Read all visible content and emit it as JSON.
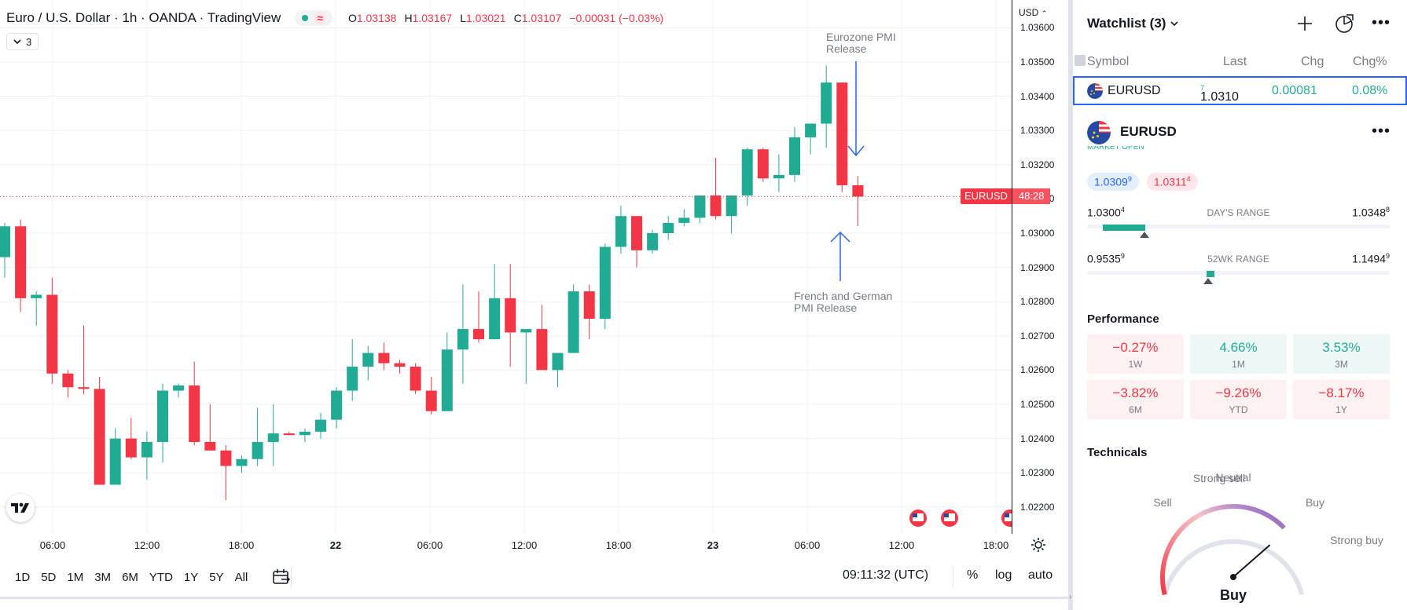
{
  "chart_header": {
    "title": "Euro / U.S. Dollar · 1h · OANDA · TradingView",
    "ohlc": [
      {
        "k": "O",
        "v": "1.03138"
      },
      {
        "k": "H",
        "v": "1.03167"
      },
      {
        "k": "L",
        "v": "1.03021"
      },
      {
        "k": "C",
        "v": "1.03107"
      },
      {
        "k": "",
        "v": "−0.00031 (−0.03%)"
      }
    ],
    "status_icon": "market-open-dot",
    "wave_icon": "≈",
    "collapse_count": "3"
  },
  "price_axis": {
    "currency": "USD",
    "ticks": [
      "1.03600",
      "1.03500",
      "1.03400",
      "1.03300",
      "1.03200",
      "1.03100",
      "1.03000",
      "1.02900",
      "1.02800",
      "1.02700",
      "1.02600",
      "1.02500",
      "1.02400",
      "1.02300",
      "1.02200"
    ],
    "symbol_tag": "EURUSD",
    "countdown": "48:28"
  },
  "time_axis": [
    {
      "label": "06:00",
      "bold": false
    },
    {
      "label": "12:00",
      "bold": false
    },
    {
      "label": "18:00",
      "bold": false
    },
    {
      "label": "22",
      "bold": true
    },
    {
      "label": "06:00",
      "bold": false
    },
    {
      "label": "12:00",
      "bold": false
    },
    {
      "label": "18:00",
      "bold": false
    },
    {
      "label": "23",
      "bold": true
    },
    {
      "label": "06:00",
      "bold": false
    },
    {
      "label": "12:00",
      "bold": false
    },
    {
      "label": "18:00",
      "bold": false
    }
  ],
  "annotations": {
    "top": [
      "Eurozone PMI",
      "Release"
    ],
    "bottom": [
      "French and German",
      "PMI Release"
    ]
  },
  "colors": {
    "up": "#22ab94",
    "down": "#f23645",
    "annotation": "#2962ff",
    "accent": "#2962ff"
  },
  "chart_data": {
    "type": "candlestick",
    "ylim": [
      1.0215,
      1.0362
    ],
    "candles": [
      {
        "o": 1.0293,
        "h": 1.0303,
        "l": 1.0287,
        "c": 1.0302
      },
      {
        "o": 1.0302,
        "h": 1.0304,
        "l": 1.0277,
        "c": 1.0281
      },
      {
        "o": 1.0281,
        "h": 1.0283,
        "l": 1.0273,
        "c": 1.0282
      },
      {
        "o": 1.0282,
        "h": 1.0287,
        "l": 1.0256,
        "c": 1.0259
      },
      {
        "o": 1.0259,
        "h": 1.026,
        "l": 1.0252,
        "c": 1.0255
      },
      {
        "o": 1.0255,
        "h": 1.0273,
        "l": 1.0253,
        "c": 1.02545
      },
      {
        "o": 1.02545,
        "h": 1.0258,
        "l": 1.02265,
        "c": 1.02265
      },
      {
        "o": 1.02265,
        "h": 1.0243,
        "l": 1.02265,
        "c": 1.024
      },
      {
        "o": 1.024,
        "h": 1.0246,
        "l": 1.0234,
        "c": 1.02345
      },
      {
        "o": 1.02345,
        "h": 1.0242,
        "l": 1.0228,
        "c": 1.0239
      },
      {
        "o": 1.0239,
        "h": 1.0256,
        "l": 1.0233,
        "c": 1.0254
      },
      {
        "o": 1.0254,
        "h": 1.0256,
        "l": 1.0252,
        "c": 1.02555
      },
      {
        "o": 1.02555,
        "h": 1.02625,
        "l": 1.0238,
        "c": 1.0239
      },
      {
        "o": 1.0239,
        "h": 1.025,
        "l": 1.0237,
        "c": 1.02365
      },
      {
        "o": 1.02365,
        "h": 1.0238,
        "l": 1.0222,
        "c": 1.0232
      },
      {
        "o": 1.0232,
        "h": 1.0235,
        "l": 1.023,
        "c": 1.0234
      },
      {
        "o": 1.0234,
        "h": 1.0249,
        "l": 1.0232,
        "c": 1.0239
      },
      {
        "o": 1.0239,
        "h": 1.025,
        "l": 1.0232,
        "c": 1.02415
      },
      {
        "o": 1.02415,
        "h": 1.0242,
        "l": 1.0241,
        "c": 1.0241
      },
      {
        "o": 1.0241,
        "h": 1.0243,
        "l": 1.0239,
        "c": 1.0242
      },
      {
        "o": 1.0242,
        "h": 1.02475,
        "l": 1.024,
        "c": 1.02455
      },
      {
        "o": 1.02455,
        "h": 1.0255,
        "l": 1.0243,
        "c": 1.0254
      },
      {
        "o": 1.0254,
        "h": 1.0269,
        "l": 1.0251,
        "c": 1.0261
      },
      {
        "o": 1.0261,
        "h": 1.0267,
        "l": 1.0257,
        "c": 1.0265
      },
      {
        "o": 1.0265,
        "h": 1.0268,
        "l": 1.026,
        "c": 1.0262
      },
      {
        "o": 1.0262,
        "h": 1.0263,
        "l": 1.0259,
        "c": 1.0261
      },
      {
        "o": 1.0261,
        "h": 1.0262,
        "l": 1.0253,
        "c": 1.0254
      },
      {
        "o": 1.0254,
        "h": 1.0258,
        "l": 1.0247,
        "c": 1.0248
      },
      {
        "o": 1.0248,
        "h": 1.0271,
        "l": 1.0248,
        "c": 1.0266
      },
      {
        "o": 1.0266,
        "h": 1.0285,
        "l": 1.0256,
        "c": 1.0272
      },
      {
        "o": 1.0272,
        "h": 1.0283,
        "l": 1.0268,
        "c": 1.0269
      },
      {
        "o": 1.0269,
        "h": 1.0291,
        "l": 1.0269,
        "c": 1.0281
      },
      {
        "o": 1.0281,
        "h": 1.0291,
        "l": 1.0261,
        "c": 1.0271
      },
      {
        "o": 1.0271,
        "h": 1.0272,
        "l": 1.0256,
        "c": 1.0272
      },
      {
        "o": 1.0272,
        "h": 1.0279,
        "l": 1.026,
        "c": 1.026
      },
      {
        "o": 1.026,
        "h": 1.0265,
        "l": 1.0255,
        "c": 1.0265
      },
      {
        "o": 1.0265,
        "h": 1.0285,
        "l": 1.0265,
        "c": 1.0283
      },
      {
        "o": 1.0283,
        "h": 1.0285,
        "l": 1.0269,
        "c": 1.0275
      },
      {
        "o": 1.0275,
        "h": 1.0297,
        "l": 1.0272,
        "c": 1.0296
      },
      {
        "o": 1.0296,
        "h": 1.0308,
        "l": 1.0294,
        "c": 1.0305
      },
      {
        "o": 1.0305,
        "h": 1.0305,
        "l": 1.029,
        "c": 1.0295
      },
      {
        "o": 1.0295,
        "h": 1.0301,
        "l": 1.0294,
        "c": 1.03
      },
      {
        "o": 1.03,
        "h": 1.0305,
        "l": 1.0298,
        "c": 1.0303
      },
      {
        "o": 1.0303,
        "h": 1.0307,
        "l": 1.0302,
        "c": 1.03045
      },
      {
        "o": 1.03045,
        "h": 1.0311,
        "l": 1.0303,
        "c": 1.0311
      },
      {
        "o": 1.0311,
        "h": 1.0322,
        "l": 1.0304,
        "c": 1.0305
      },
      {
        "o": 1.0305,
        "h": 1.0311,
        "l": 1.03,
        "c": 1.0311
      },
      {
        "o": 1.0311,
        "h": 1.0325,
        "l": 1.0308,
        "c": 1.03245
      },
      {
        "o": 1.03245,
        "h": 1.0325,
        "l": 1.0315,
        "c": 1.0316
      },
      {
        "o": 1.0316,
        "h": 1.0323,
        "l": 1.0312,
        "c": 1.0317
      },
      {
        "o": 1.0317,
        "h": 1.0331,
        "l": 1.0315,
        "c": 1.0328
      },
      {
        "o": 1.0328,
        "h": 1.0332,
        "l": 1.0323,
        "c": 1.0332
      },
      {
        "o": 1.0332,
        "h": 1.0349,
        "l": 1.0325,
        "c": 1.0344
      },
      {
        "o": 1.0344,
        "h": 1.0344,
        "l": 1.0312,
        "c": 1.0314
      },
      {
        "o": 1.0314,
        "h": 1.03167,
        "l": 1.03021,
        "c": 1.03107
      }
    ]
  },
  "bottom_bar": {
    "ranges": [
      "1D",
      "5D",
      "1M",
      "3M",
      "6M",
      "YTD",
      "1Y",
      "5Y",
      "All"
    ],
    "clock": "09:11:32 (UTC)",
    "percent": "%",
    "log": "log",
    "auto": "auto"
  },
  "watchlist": {
    "title": "Watchlist (3)",
    "columns": {
      "symbol": "Symbol",
      "last": "Last",
      "chg": "Chg",
      "chgp": "Chg%"
    },
    "row": {
      "symbol": "EURUSD",
      "last_main": "1.0310",
      "last_sup": "7",
      "chg": "0.00081",
      "chgp": "0.08%"
    }
  },
  "detail": {
    "symbol": "EURUSD",
    "market_status": "MARKET OPEN",
    "bid_main": "1.0309",
    "bid_sup": "9",
    "ask_main": "1.0311",
    "ask_sup": "4",
    "day_range": {
      "label": "DAY'S RANGE",
      "lo_main": "1.0300",
      "lo_sup": "4",
      "hi_main": "1.0348",
      "hi_sup": "8",
      "position": 0.19
    },
    "wk52_range": {
      "label": "52WK RANGE",
      "lo_main": "0.9535",
      "lo_sup": "9",
      "hi_main": "1.1494",
      "hi_sup": "9",
      "position": 0.4
    },
    "performance_title": "Performance",
    "performance": [
      {
        "value": "−0.27%",
        "period": "1W",
        "dir": "neg"
      },
      {
        "value": "4.66%",
        "period": "1M",
        "dir": "pos"
      },
      {
        "value": "3.53%",
        "period": "3M",
        "dir": "pos"
      },
      {
        "value": "−3.82%",
        "period": "6M",
        "dir": "neg"
      },
      {
        "value": "−9.26%",
        "period": "YTD",
        "dir": "neg"
      },
      {
        "value": "−8.17%",
        "period": "1Y",
        "dir": "neg"
      }
    ],
    "technicals_title": "Technicals",
    "gauge_labels": {
      "strong_sell": "Strong sell",
      "sell": "Sell",
      "neutral": "Neutral",
      "buy": "Buy",
      "strong_buy": "Strong buy"
    },
    "gauge_result": "Buy",
    "gauge_value": 0.72
  }
}
